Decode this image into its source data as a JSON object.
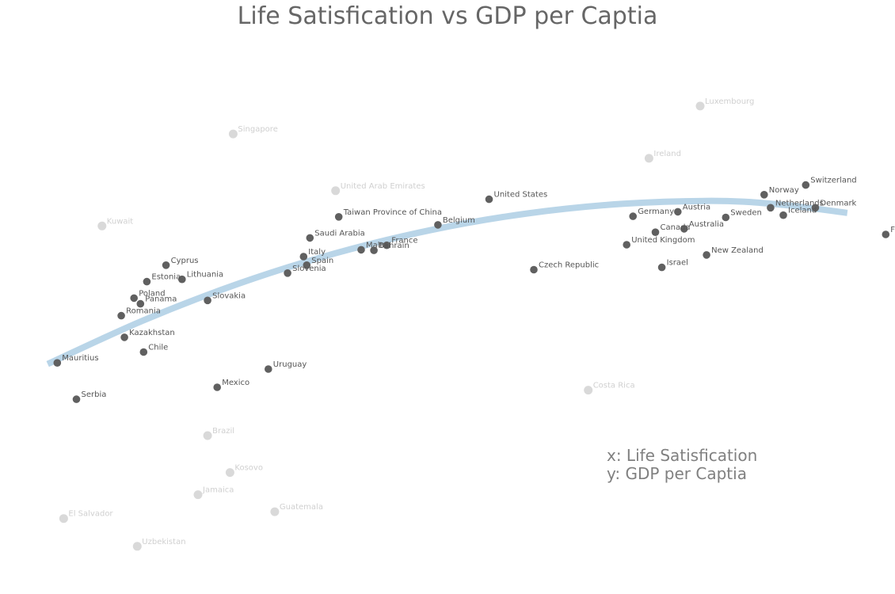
{
  "chart_data": {
    "type": "scatter",
    "title": "Life Satisfication vs GDP per Captia",
    "xlabel": "x: Life Satisfication",
    "ylabel": "y: GDP per Captia",
    "xlim": [
      5.15,
      7.75
    ],
    "ylim": [
      3.0,
      12.55
    ],
    "grid": false,
    "axes_visible": false,
    "colors": {
      "highlighted": "#606060",
      "faded": "#d9d9d9",
      "trend": "#b9d5e8"
    },
    "trend_line": {
      "x": [
        5.2,
        5.5,
        5.8,
        6.1,
        6.4,
        6.7,
        7.0,
        7.3,
        7.5,
        7.7
      ],
      "y": [
        6.77,
        7.54,
        8.19,
        8.72,
        9.13,
        9.42,
        9.59,
        9.64,
        9.57,
        9.43
      ]
    },
    "series": [
      {
        "group": "highlighted",
        "points": [
          {
            "label": "Switzerland",
            "x": 7.57,
            "y": 9.92
          },
          {
            "label": "Norway",
            "x": 7.44,
            "y": 9.75
          },
          {
            "label": "United States",
            "x": 6.58,
            "y": 9.67
          },
          {
            "label": "Netherlands",
            "x": 7.46,
            "y": 9.52
          },
          {
            "label": "Denmark",
            "x": 7.6,
            "y": 9.52
          },
          {
            "label": "Austria",
            "x": 7.17,
            "y": 9.45
          },
          {
            "label": "Germany",
            "x": 7.03,
            "y": 9.37
          },
          {
            "label": "Iceland",
            "x": 7.5,
            "y": 9.39
          },
          {
            "label": "Sweden",
            "x": 7.32,
            "y": 9.35
          },
          {
            "label": "Taiwan Province of China",
            "x": 6.11,
            "y": 9.36
          },
          {
            "label": "Belgium",
            "x": 6.42,
            "y": 9.22
          },
          {
            "label": "Australia",
            "x": 7.19,
            "y": 9.15
          },
          {
            "label": "Canada",
            "x": 7.1,
            "y": 9.09
          },
          {
            "label": "Finland",
            "x": 7.82,
            "y": 9.05
          },
          {
            "label": "Saudi Arabia",
            "x": 6.02,
            "y": 8.99
          },
          {
            "label": "France",
            "x": 6.26,
            "y": 8.86
          },
          {
            "label": "United Kingdom",
            "x": 7.01,
            "y": 8.87
          },
          {
            "label": "Malta",
            "x": 6.18,
            "y": 8.78
          },
          {
            "label": "Bahrain",
            "x": 6.22,
            "y": 8.77
          },
          {
            "label": "New Zealand",
            "x": 7.26,
            "y": 8.69
          },
          {
            "label": "Italy",
            "x": 6.0,
            "y": 8.66
          },
          {
            "label": "Spain",
            "x": 6.01,
            "y": 8.51
          },
          {
            "label": "Israel",
            "x": 7.12,
            "y": 8.47
          },
          {
            "label": "Czech Republic",
            "x": 6.72,
            "y": 8.43
          },
          {
            "label": "Slovenia",
            "x": 5.95,
            "y": 8.37
          },
          {
            "label": "Cyprus",
            "x": 5.57,
            "y": 8.51
          },
          {
            "label": "Lithuania",
            "x": 5.62,
            "y": 8.26
          },
          {
            "label": "Estonia",
            "x": 5.51,
            "y": 8.22
          },
          {
            "label": "Poland",
            "x": 5.47,
            "y": 7.93
          },
          {
            "label": "Panama",
            "x": 5.49,
            "y": 7.83
          },
          {
            "label": "Slovakia",
            "x": 5.7,
            "y": 7.89
          },
          {
            "label": "Romania",
            "x": 5.43,
            "y": 7.62
          },
          {
            "label": "Kazakhstan",
            "x": 5.44,
            "y": 7.24
          },
          {
            "label": "Chile",
            "x": 5.5,
            "y": 6.98
          },
          {
            "label": "Mauritius",
            "x": 5.23,
            "y": 6.79
          },
          {
            "label": "Uruguay",
            "x": 5.89,
            "y": 6.68
          },
          {
            "label": "Mexico",
            "x": 5.73,
            "y": 6.36
          },
          {
            "label": "Serbia",
            "x": 5.29,
            "y": 6.15
          }
        ]
      },
      {
        "group": "faded",
        "points": [
          {
            "label": "Luxembourg",
            "x": 7.24,
            "y": 11.31
          },
          {
            "label": "Singapore",
            "x": 5.78,
            "y": 10.82
          },
          {
            "label": "Ireland",
            "x": 7.08,
            "y": 10.39
          },
          {
            "label": "United Arab Emirates",
            "x": 6.1,
            "y": 9.82
          },
          {
            "label": "Kuwait",
            "x": 5.37,
            "y": 9.2
          },
          {
            "label": "Costa Rica",
            "x": 6.89,
            "y": 6.31
          },
          {
            "label": "Brazil",
            "x": 5.7,
            "y": 5.51
          },
          {
            "label": "Kosovo",
            "x": 5.77,
            "y": 4.86
          },
          {
            "label": "Jamaica",
            "x": 5.67,
            "y": 4.47
          },
          {
            "label": "Guatemala",
            "x": 5.91,
            "y": 4.17
          },
          {
            "label": "El Salvador",
            "x": 5.25,
            "y": 4.05
          },
          {
            "label": "Uzbekistan",
            "x": 5.48,
            "y": 3.56
          }
        ]
      }
    ]
  }
}
